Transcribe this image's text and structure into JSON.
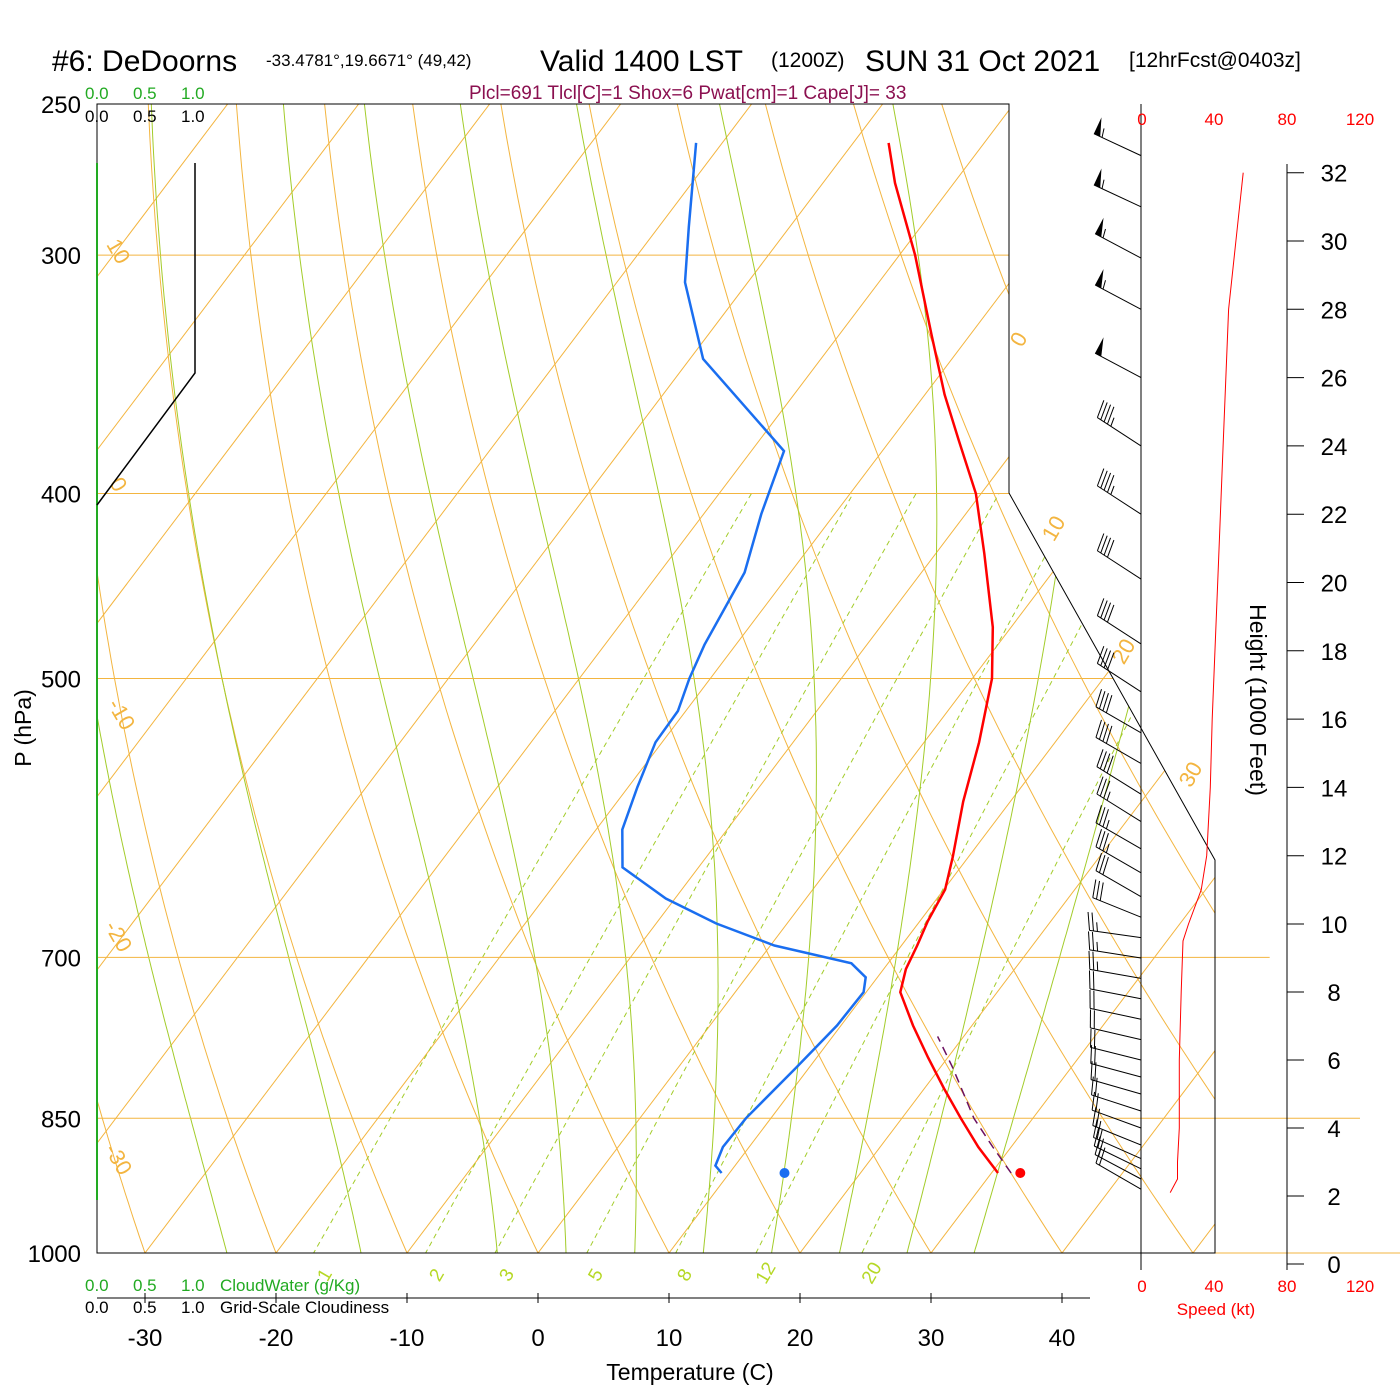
{
  "title": {
    "station": "#6: DeDoorns",
    "coords": "-33.4781°,19.6671° (49,42)",
    "valid": "Valid 1400 LST",
    "utc": "(1200Z)",
    "date": "SUN 31 Oct 2021",
    "forecast": "[12hrFcst@0403z]"
  },
  "indices": "Plcl=691 Tlcl[C]=1 Shox=6 Pwat[cm]=1 Cape[J]= 33",
  "colors": {
    "temperature": "#ff0000",
    "dewpoint": "#1a6ef0",
    "isotherm": "#f3b540",
    "dry_adiabat": "#f3b540",
    "moist_adiabat": "#a3cc2a",
    "mixing_ratio": "#a3cc2a",
    "parcel": "#6b1060",
    "cloud_water": "#22aa22",
    "wind_speed": "#ff0000",
    "indices_text": "#8b1050"
  },
  "cloud_scale": {
    "water_ticks": [
      "0.0",
      "0.5",
      "1.0"
    ],
    "cloud_ticks": [
      "0.0",
      "0.5",
      "1.0"
    ],
    "water_label": "CloudWater (g/Kg)",
    "cloud_label": "Grid-Scale Cloudiness"
  },
  "speed_axis": {
    "ticks": [
      "0",
      "40",
      "80",
      "120"
    ],
    "label": "Speed (kt)"
  },
  "height_axis": {
    "label": "Height (1000 Feet)",
    "ticks": [
      "0",
      "2",
      "4",
      "6",
      "8",
      "10",
      "12",
      "14",
      "16",
      "18",
      "20",
      "22",
      "24",
      "26",
      "28",
      "30",
      "32"
    ]
  },
  "chart_data": {
    "type": "line",
    "xlabel": "Temperature (C)",
    "ylabel": "P (hPa)",
    "x_ticks": [
      "-30",
      "-20",
      "-10",
      "0",
      "10",
      "20",
      "30",
      "40"
    ],
    "p_ticks": [
      "250",
      "300",
      "400",
      "500",
      "700",
      "850",
      "1000"
    ],
    "p_range": [
      1000,
      250
    ],
    "isotherm_labels": [
      "10",
      "0",
      "-10",
      "-20",
      "-30",
      "0",
      "10",
      "20",
      "30"
    ],
    "mixing_ratio_labels": [
      "1",
      "2",
      "3",
      "5",
      "8",
      "12",
      "20"
    ],
    "series": [
      {
        "id": "temperature",
        "points": [
          [
            908,
            30.5
          ],
          [
            880,
            27.5
          ],
          [
            850,
            24.5
          ],
          [
            820,
            21.5
          ],
          [
            790,
            18.5
          ],
          [
            760,
            15.5
          ],
          [
            730,
            12.6
          ],
          [
            710,
            11.7
          ],
          [
            690,
            11.2
          ],
          [
            670,
            10.6
          ],
          [
            645,
            10.1
          ],
          [
            620,
            8.8
          ],
          [
            580,
            6.4
          ],
          [
            540,
            4.2
          ],
          [
            500,
            1.5
          ],
          [
            470,
            -1.4
          ],
          [
            430,
            -6.3
          ],
          [
            400,
            -10.4
          ],
          [
            375,
            -14.8
          ],
          [
            355,
            -18.5
          ],
          [
            330,
            -23.0
          ],
          [
            300,
            -28.8
          ],
          [
            275,
            -34.5
          ],
          [
            262,
            -37.3
          ]
        ]
      },
      {
        "id": "dewpoint",
        "points": [
          [
            908,
            9.4
          ],
          [
            900,
            8.5
          ],
          [
            880,
            8.0
          ],
          [
            850,
            8.1
          ],
          [
            800,
            9.0
          ],
          [
            760,
            9.7
          ],
          [
            730,
            9.8
          ],
          [
            717,
            9.1
          ],
          [
            705,
            7.2
          ],
          [
            690,
            0.3
          ],
          [
            672,
            -5.4
          ],
          [
            652,
            -10.7
          ],
          [
            628,
            -15.8
          ],
          [
            600,
            -18.0
          ],
          [
            570,
            -19.3
          ],
          [
            540,
            -20.5
          ],
          [
            520,
            -20.6
          ],
          [
            500,
            -21.6
          ],
          [
            480,
            -22.4
          ],
          [
            440,
            -23.5
          ],
          [
            410,
            -25.6
          ],
          [
            380,
            -27.5
          ],
          [
            340,
            -39.0
          ],
          [
            310,
            -44.8
          ],
          [
            290,
            -47.7
          ],
          [
            262,
            -52.0
          ]
        ]
      },
      {
        "id": "parcel",
        "points": [
          [
            908,
            31.5
          ],
          [
            880,
            28.6
          ],
          [
            850,
            25.5
          ],
          [
            800,
            21.0
          ],
          [
            770,
            18.0
          ]
        ]
      }
    ],
    "surface_temperature": 32.2,
    "surface_dewpoint": 14.2,
    "surface_pressure": 908,
    "wind_speed_profile": {
      "height_kft": [
        2.1,
        2.5,
        3,
        4,
        6,
        8,
        9.5,
        10,
        11,
        12,
        14,
        16,
        20,
        24,
        28,
        30,
        32
      ],
      "speed_kt": [
        16,
        20,
        20,
        21,
        21,
        22,
        23,
        26,
        33,
        36,
        38,
        39,
        42,
        45,
        48,
        52,
        56
      ]
    },
    "wind_barbs": {
      "height_kft": [
        2.2,
        2.5,
        2.8,
        3.1,
        3.5,
        4,
        4.5,
        5,
        5.5,
        6,
        6.6,
        7.2,
        7.8,
        8.4,
        9,
        9.6,
        10.2,
        10.8,
        11.5,
        12.2,
        13,
        13.8,
        14.7,
        15.6,
        16.8,
        18.2,
        20.1,
        22,
        24,
        26,
        28,
        29.5,
        31,
        32.5
      ],
      "direction_deg": [
        300,
        298,
        296,
        294,
        292,
        290,
        288,
        286,
        285,
        284,
        283,
        282,
        281,
        280,
        279,
        278,
        292,
        300,
        300,
        300,
        302,
        302,
        300,
        300,
        303,
        303,
        303,
        303,
        303,
        298,
        298,
        298,
        295,
        295
      ],
      "speed_kt": [
        18,
        18,
        18,
        19,
        19,
        20,
        20,
        21,
        21,
        21,
        22,
        22,
        22,
        23,
        23,
        25,
        28,
        31,
        33,
        35,
        37,
        38,
        38,
        39,
        40,
        42,
        42,
        45,
        45,
        52,
        55,
        55,
        55,
        55
      ]
    }
  }
}
